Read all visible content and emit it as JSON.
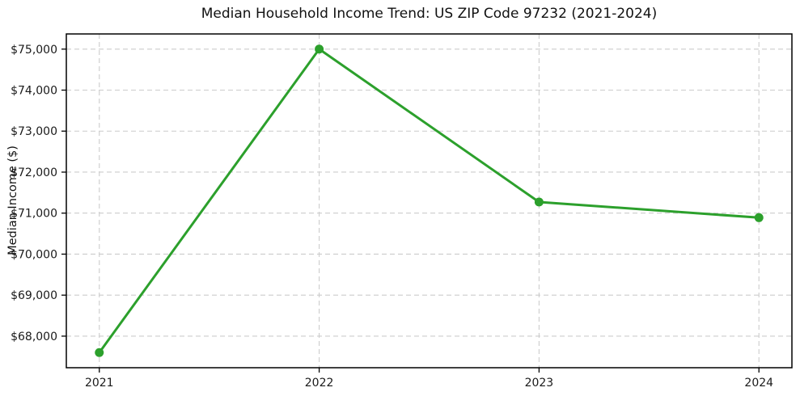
{
  "chart_data": {
    "type": "line",
    "title": "Median Household Income Trend: US ZIP Code 97232 (2021-2024)",
    "xlabel": "",
    "ylabel": "Median Income ($)",
    "x": [
      2021,
      2022,
      2023,
      2024
    ],
    "y": [
      67600,
      75000,
      71270,
      70890
    ],
    "xticks": [
      2021,
      2022,
      2023,
      2024
    ],
    "xtick_labels": [
      "2021",
      "2022",
      "2023",
      "2024"
    ],
    "yticks": [
      68000,
      69000,
      70000,
      71000,
      72000,
      73000,
      74000,
      75000
    ],
    "ytick_labels": [
      "$68,000",
      "$69,000",
      "$70,000",
      "$71,000",
      "$72,000",
      "$73,000",
      "$74,000",
      "$75,000"
    ],
    "xlim": [
      2020.85,
      2024.15
    ],
    "ylim": [
      67230,
      75370
    ],
    "grid": true,
    "legend": false,
    "line_color": "#2ca02c",
    "marker": "o",
    "grid_color": "#cccccc",
    "spine_color": "#000000",
    "text_color": "#1a1a1a"
  }
}
